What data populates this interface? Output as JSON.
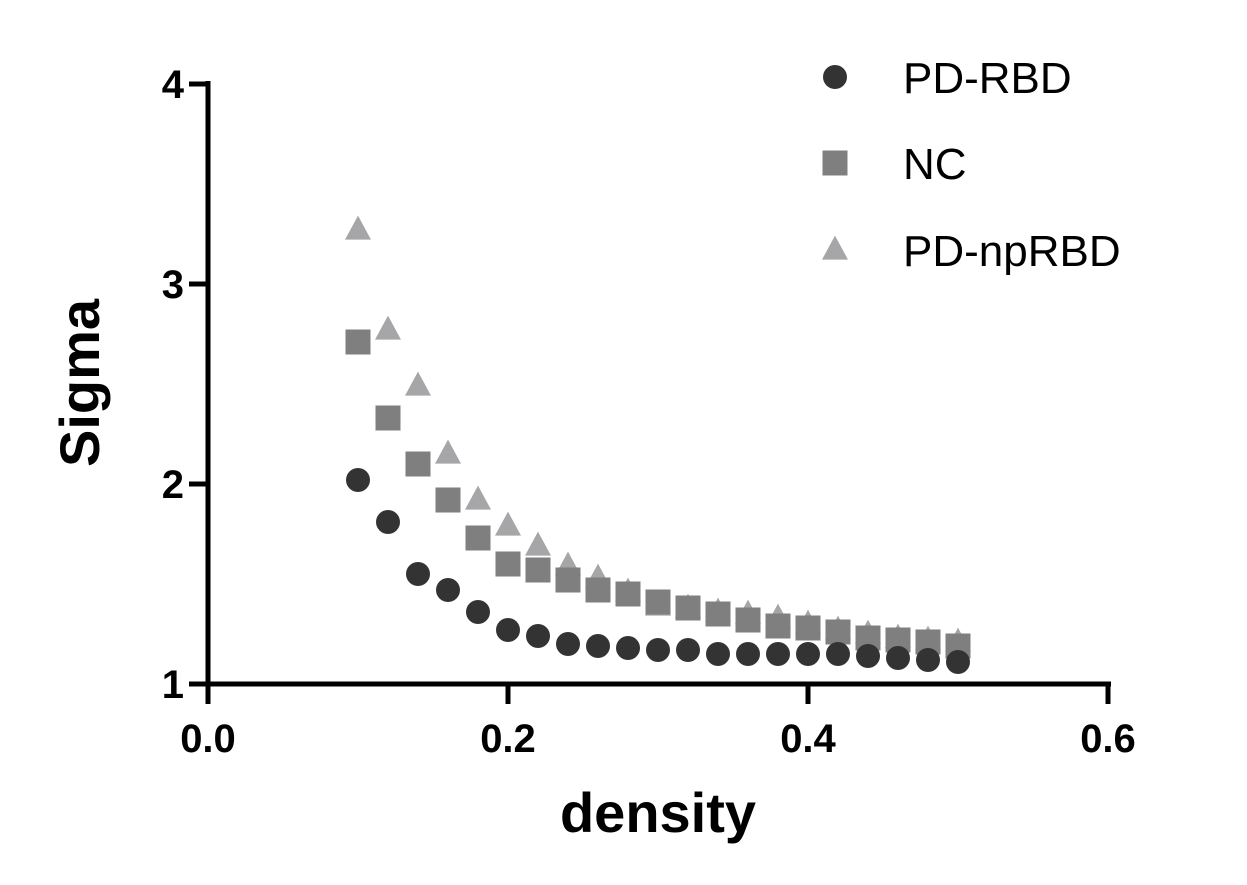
{
  "chart_data": {
    "type": "scatter",
    "title": "",
    "xlabel": "density",
    "ylabel": "Sigma",
    "xlim": [
      0.0,
      0.6
    ],
    "ylim": [
      1,
      4
    ],
    "xticks": [
      0.0,
      0.2,
      0.4,
      0.6
    ],
    "xtick_labels": [
      "0.0",
      "0.2",
      "0.4",
      "0.6"
    ],
    "yticks": [
      1,
      2,
      3,
      4
    ],
    "ytick_labels": [
      "1",
      "2",
      "3",
      "4"
    ],
    "legend_position": "top-right",
    "x": [
      0.1,
      0.12,
      0.14,
      0.16,
      0.18,
      0.2,
      0.22,
      0.24,
      0.26,
      0.28,
      0.3,
      0.32,
      0.34,
      0.36,
      0.38,
      0.4,
      0.42,
      0.44,
      0.46,
      0.48,
      0.5
    ],
    "series": [
      {
        "name": "PD-npRBD",
        "marker": "triangle",
        "color": "#a6a6a8",
        "values": [
          3.27,
          2.77,
          2.49,
          2.15,
          1.92,
          1.79,
          1.69,
          1.59,
          1.53,
          1.46,
          1.39,
          1.38,
          1.36,
          1.35,
          1.33,
          1.3,
          1.27,
          1.25,
          1.23,
          1.22,
          1.21
        ]
      },
      {
        "name": "NC",
        "marker": "square",
        "color": "#7f7f80",
        "values": [
          2.71,
          2.33,
          2.1,
          1.92,
          1.73,
          1.6,
          1.57,
          1.52,
          1.47,
          1.45,
          1.41,
          1.38,
          1.35,
          1.32,
          1.29,
          1.28,
          1.26,
          1.23,
          1.22,
          1.21,
          1.19
        ]
      },
      {
        "name": "PD-RBD",
        "marker": "circle",
        "color": "#333334",
        "values": [
          2.02,
          1.81,
          1.55,
          1.47,
          1.36,
          1.27,
          1.24,
          1.2,
          1.19,
          1.18,
          1.17,
          1.17,
          1.15,
          1.15,
          1.15,
          1.15,
          1.15,
          1.14,
          1.13,
          1.12,
          1.11
        ]
      }
    ],
    "legend_order": [
      "PD-RBD",
      "NC",
      "PD-npRBD"
    ]
  }
}
